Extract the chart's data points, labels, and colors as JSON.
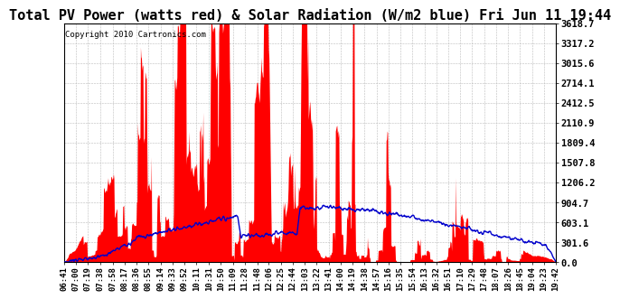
{
  "title": "Total PV Power (watts red) & Solar Radiation (W/m2 blue) Fri Jun 11 19:44",
  "copyright_text": "Copyright 2010 Cartronics.com",
  "background_color": "#ffffff",
  "plot_background": "#ffffff",
  "grid_color": "#bbbbbb",
  "pv_color": "#ff0000",
  "solar_color": "#0000cc",
  "ymax": 3618.7,
  "yticks": [
    0.0,
    301.6,
    603.1,
    904.7,
    1206.2,
    1507.8,
    1809.4,
    2110.9,
    2412.5,
    2714.1,
    3015.6,
    3317.2,
    3618.7
  ],
  "xtick_labels": [
    "06:41",
    "07:00",
    "07:19",
    "07:38",
    "07:58",
    "08:17",
    "08:36",
    "08:55",
    "09:14",
    "09:33",
    "09:52",
    "10:11",
    "10:31",
    "10:50",
    "11:09",
    "11:28",
    "11:48",
    "12:06",
    "12:25",
    "12:44",
    "13:03",
    "13:22",
    "13:41",
    "14:00",
    "14:19",
    "14:38",
    "14:57",
    "15:16",
    "15:35",
    "15:54",
    "16:13",
    "16:32",
    "16:51",
    "17:10",
    "17:29",
    "17:48",
    "18:07",
    "18:26",
    "18:45",
    "19:04",
    "19:23",
    "19:42"
  ],
  "title_fontsize": 11,
  "copyright_fontsize": 6.5,
  "tick_fontsize": 6.5,
  "ytick_fontsize": 7.5,
  "n_points": 1000
}
